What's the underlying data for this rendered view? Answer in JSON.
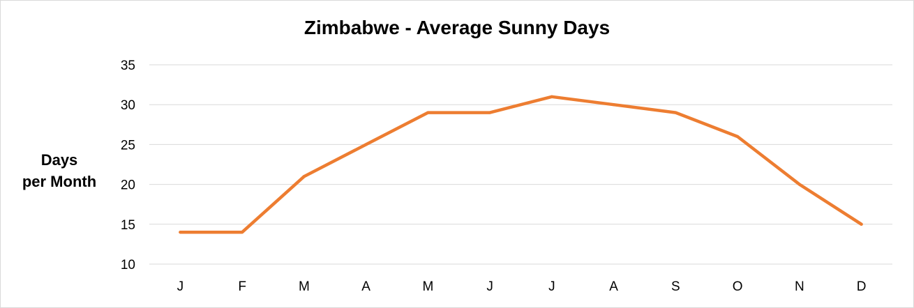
{
  "chart_data": {
    "type": "line",
    "title": "Zimbabwe - Average Sunny Days",
    "xlabel": "",
    "ylabel_lines": [
      "Days",
      "per Month"
    ],
    "categories": [
      "J",
      "F",
      "M",
      "A",
      "M",
      "J",
      "J",
      "A",
      "S",
      "O",
      "N",
      "D"
    ],
    "series": [
      {
        "values": [
          14,
          14,
          21,
          25,
          29,
          29,
          31,
          30,
          29,
          26,
          20,
          15
        ],
        "color": "#ED7D31"
      }
    ],
    "ylim": [
      10,
      35
    ],
    "yticks": [
      10,
      15,
      20,
      25,
      30,
      35
    ],
    "grid": true,
    "legend": "none",
    "colors": {
      "gridline": "#d9d9d9",
      "border": "#d9d9d9"
    }
  }
}
